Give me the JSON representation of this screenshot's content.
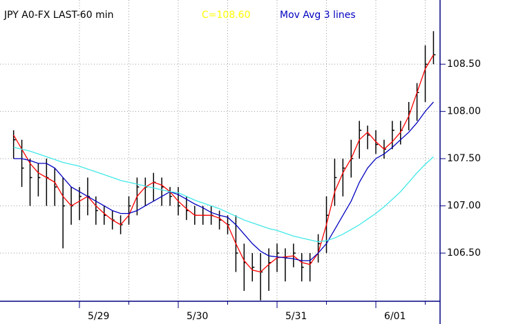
{
  "chart_data": {
    "type": "ohlc",
    "title": "JPY A0-FX LAST-60 min",
    "last_label": "C=108.60",
    "last_color": "#ffff00",
    "study_label": "Mov Avg 3 lines",
    "study_color": "#0000c0",
    "x": [
      -16,
      -14,
      -12,
      -10,
      -8,
      -6,
      -4,
      -2,
      0,
      2,
      4,
      6,
      8,
      10,
      12,
      14,
      16,
      18,
      20,
      22,
      24,
      26,
      28,
      30,
      32,
      34,
      36,
      38,
      40,
      42,
      44,
      46,
      48,
      50,
      52,
      54,
      56,
      58,
      60,
      62,
      64,
      66,
      68,
      70,
      72,
      74,
      76,
      78,
      80,
      82,
      84,
      86
    ],
    "high": [
      107.8,
      107.7,
      107.5,
      107.45,
      107.5,
      107.4,
      107.3,
      107.2,
      107.2,
      107.3,
      107.1,
      107.0,
      106.95,
      106.9,
      107.1,
      107.3,
      107.3,
      107.35,
      107.3,
      107.2,
      107.2,
      107.1,
      107.0,
      107.0,
      107.0,
      106.95,
      106.9,
      106.9,
      106.6,
      106.5,
      106.5,
      106.55,
      106.6,
      106.55,
      106.6,
      106.5,
      106.5,
      106.7,
      107.1,
      107.5,
      107.5,
      107.7,
      107.9,
      107.85,
      107.8,
      107.7,
      107.9,
      107.9,
      108.1,
      108.3,
      108.7,
      108.85
    ],
    "low": [
      107.5,
      107.2,
      107.0,
      107.1,
      107.0,
      107.0,
      106.55,
      106.8,
      106.85,
      106.9,
      106.8,
      106.8,
      106.75,
      106.7,
      106.8,
      106.9,
      107.0,
      107.05,
      107.0,
      107.0,
      106.9,
      106.85,
      106.8,
      106.8,
      106.8,
      106.75,
      106.7,
      106.3,
      106.1,
      106.2,
      106.0,
      106.1,
      106.3,
      106.2,
      106.35,
      106.2,
      106.2,
      106.4,
      106.5,
      107.0,
      107.1,
      107.3,
      107.5,
      107.6,
      107.55,
      107.5,
      107.6,
      107.65,
      107.8,
      107.9,
      108.1,
      108.5
    ],
    "close": [
      107.7,
      107.4,
      107.3,
      107.3,
      107.3,
      107.2,
      107.0,
      107.0,
      107.1,
      107.1,
      106.95,
      106.9,
      106.85,
      106.8,
      107.0,
      107.2,
      107.2,
      107.25,
      107.2,
      107.1,
      107.0,
      106.95,
      106.9,
      106.9,
      106.9,
      106.85,
      106.8,
      106.5,
      106.4,
      106.35,
      106.3,
      106.4,
      106.5,
      106.45,
      106.5,
      106.35,
      106.4,
      106.6,
      106.9,
      107.3,
      107.4,
      107.5,
      107.8,
      107.75,
      107.65,
      107.6,
      107.8,
      107.8,
      108.0,
      108.2,
      108.5,
      108.6
    ],
    "bar_color": "#000000",
    "series": [
      {
        "color": "#ff0000",
        "values": [
          107.75,
          107.6,
          107.45,
          107.35,
          107.3,
          107.25,
          107.1,
          107.0,
          107.05,
          107.1,
          107.0,
          106.92,
          106.85,
          106.8,
          106.9,
          107.1,
          107.2,
          107.25,
          107.22,
          107.15,
          107.05,
          106.97,
          106.9,
          106.9,
          106.9,
          106.87,
          106.8,
          106.6,
          106.42,
          106.32,
          106.3,
          106.38,
          106.45,
          106.46,
          106.47,
          106.4,
          106.38,
          106.5,
          106.8,
          107.15,
          107.35,
          107.5,
          107.7,
          107.78,
          107.68,
          107.6,
          107.68,
          107.78,
          107.95,
          108.2,
          108.45,
          108.6
        ]
      },
      {
        "color": "#0000c0",
        "values": [
          107.5,
          107.5,
          107.48,
          107.45,
          107.45,
          107.4,
          107.3,
          107.2,
          107.15,
          107.1,
          107.05,
          107.0,
          106.95,
          106.92,
          106.92,
          106.95,
          107.0,
          107.05,
          107.1,
          107.15,
          107.12,
          107.07,
          107.02,
          106.98,
          106.93,
          106.9,
          106.88,
          106.8,
          106.7,
          106.6,
          106.52,
          106.47,
          106.46,
          106.45,
          106.44,
          106.42,
          106.42,
          106.5,
          106.6,
          106.75,
          106.9,
          107.05,
          107.25,
          107.4,
          107.5,
          107.55,
          107.62,
          107.7,
          107.78,
          107.88,
          108.0,
          108.1
        ]
      },
      {
        "color": "#40e8e8",
        "values": [
          107.62,
          107.6,
          107.58,
          107.55,
          107.52,
          107.49,
          107.46,
          107.44,
          107.42,
          107.39,
          107.36,
          107.33,
          107.3,
          107.27,
          107.25,
          107.23,
          107.21,
          107.19,
          107.17,
          107.15,
          107.14,
          107.1,
          107.06,
          107.03,
          107.0,
          106.97,
          106.93,
          106.89,
          106.85,
          106.82,
          106.79,
          106.76,
          106.74,
          106.71,
          106.68,
          106.66,
          106.64,
          106.62,
          106.63,
          106.66,
          106.7,
          106.75,
          106.8,
          106.86,
          106.92,
          106.99,
          107.07,
          107.15,
          107.25,
          107.35,
          107.44,
          107.52
        ]
      }
    ],
    "xlim": [
      -19.3,
      87.6
    ],
    "xticks": [
      {
        "value": 0,
        "label": "5/29"
      },
      {
        "value": 24,
        "label": "5/30"
      },
      {
        "value": 48,
        "label": "5/31"
      },
      {
        "value": 72,
        "label": "6/01"
      }
    ],
    "xminor": [
      12,
      36,
      60,
      84
    ],
    "ylim": [
      105.99,
      109.18
    ],
    "yticks": [
      {
        "value": 106.5,
        "label": "106.50"
      },
      {
        "value": 107,
        "label": "107.00"
      },
      {
        "value": 107.5,
        "label": "107.50"
      },
      {
        "value": 108,
        "label": "108.00"
      },
      {
        "value": 108.5,
        "label": "108.50"
      }
    ],
    "grid": true,
    "axis_color": "#000080"
  }
}
